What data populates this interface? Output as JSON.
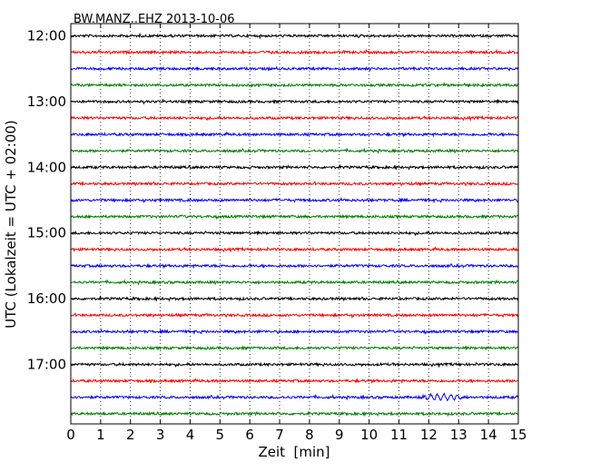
{
  "chart_data": {
    "type": "line",
    "title": "BW.MANZ..EHZ 2013-10-06",
    "xlabel": "Zeit  [min]",
    "ylabel": "UTC (Lokalzeit = UTC + 02:00)",
    "xlim": [
      0,
      15
    ],
    "x_ticks": [
      "0",
      "1",
      "2",
      "3",
      "4",
      "5",
      "6",
      "7",
      "8",
      "9",
      "10",
      "11",
      "12",
      "13",
      "14",
      "15"
    ],
    "y_ticks": [
      "12:00",
      "13:00",
      "14:00",
      "15:00",
      "16:00",
      "17:00"
    ],
    "grid": "vertical-dotted",
    "trace_interval_min": 15,
    "series": [
      {
        "start": "12:00",
        "color": "#000000"
      },
      {
        "start": "12:15",
        "color": "#ff0000"
      },
      {
        "start": "12:30",
        "color": "#0000ff"
      },
      {
        "start": "12:45",
        "color": "#007f00"
      },
      {
        "start": "13:00",
        "color": "#000000"
      },
      {
        "start": "13:15",
        "color": "#ff0000"
      },
      {
        "start": "13:30",
        "color": "#0000ff"
      },
      {
        "start": "13:45",
        "color": "#007f00"
      },
      {
        "start": "14:00",
        "color": "#000000"
      },
      {
        "start": "14:15",
        "color": "#ff0000"
      },
      {
        "start": "14:30",
        "color": "#0000ff"
      },
      {
        "start": "14:45",
        "color": "#007f00"
      },
      {
        "start": "15:00",
        "color": "#000000"
      },
      {
        "start": "15:15",
        "color": "#ff0000"
      },
      {
        "start": "15:30",
        "color": "#0000ff"
      },
      {
        "start": "15:45",
        "color": "#007f00"
      },
      {
        "start": "16:00",
        "color": "#000000"
      },
      {
        "start": "16:15",
        "color": "#ff0000"
      },
      {
        "start": "16:30",
        "color": "#0000ff"
      },
      {
        "start": "16:45",
        "color": "#007f00"
      },
      {
        "start": "17:00",
        "color": "#000000"
      },
      {
        "start": "17:15",
        "color": "#ff0000"
      },
      {
        "start": "17:30",
        "color": "#0000ff",
        "event": {
          "from": 11.6,
          "to": 14.3,
          "strength": "moderate"
        }
      },
      {
        "start": "17:45",
        "color": "#007f00"
      }
    ]
  }
}
